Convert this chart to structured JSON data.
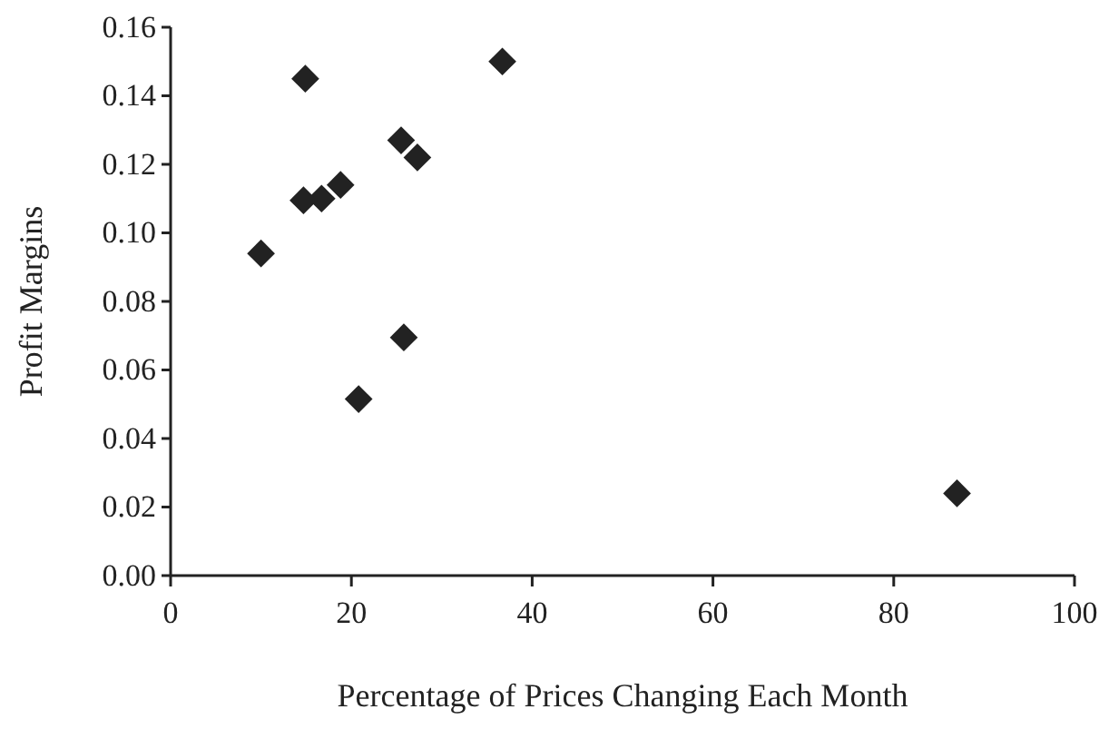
{
  "chart_data": {
    "type": "scatter",
    "xlabel": "Percentage of Prices Changing Each Month",
    "ylabel": "Profit Margins",
    "x": [
      14.9,
      36.7,
      25.5,
      27.3,
      18.8,
      16.7,
      14.7,
      10.0,
      25.8,
      20.8,
      87.0
    ],
    "series": [
      {
        "color": "#222222",
        "values": [
          0.145,
          0.15,
          0.127,
          0.122,
          0.114,
          0.11,
          0.1095,
          0.094,
          0.0695,
          0.0515,
          0.024
        ]
      }
    ],
    "xlim": [
      0,
      100
    ],
    "xticks": [
      0,
      20,
      40,
      60,
      80,
      100
    ],
    "ylim": [
      0,
      0.16
    ],
    "yticks": [
      {
        "value": 0,
        "label": "0.00"
      },
      {
        "value": 0.02,
        "label": "0.02"
      },
      {
        "value": 0.04,
        "label": "0.04"
      },
      {
        "value": 0.06,
        "label": "0.06"
      },
      {
        "value": 0.08,
        "label": "0.08"
      },
      {
        "value": 0.1,
        "label": "0.10"
      },
      {
        "value": 0.12,
        "label": "0.12"
      },
      {
        "value": 0.14,
        "label": "0.14"
      },
      {
        "value": 0.16,
        "label": "0.16"
      }
    ],
    "marker": "diamond",
    "grid": false
  }
}
